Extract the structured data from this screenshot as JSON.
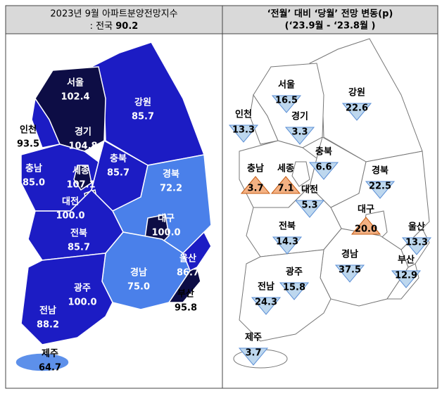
{
  "left_panel": {
    "title": "2023년 9월 아파트분양전망지수",
    "subtitle_prefix": ": 전국",
    "subtitle_value": "90.2"
  },
  "right_panel": {
    "title": "‘전월’ 대비 ‘당월’ 전망 변동(p)",
    "subtitle": "(‘23.9월 - ‘23.8월 )"
  },
  "regions": [
    {
      "name": "서울",
      "index": "102.4",
      "change": "16.5",
      "direction": "down",
      "color": "#0d0d45"
    },
    {
      "name": "강원",
      "index": "85.7",
      "change": "22.6",
      "direction": "down",
      "color": "#1c1cc4"
    },
    {
      "name": "인천",
      "index": "93.5",
      "change": "13.3",
      "direction": "down",
      "color": "#1c1cc4"
    },
    {
      "name": "경기",
      "index": "104.8",
      "change": "3.3",
      "direction": "down",
      "color": "#0d0d45"
    },
    {
      "name": "충북",
      "index": "85.7",
      "change": "6.6",
      "direction": "down",
      "color": "#1c1cc4"
    },
    {
      "name": "충남",
      "index": "85.0",
      "change": "3.7",
      "direction": "up",
      "color": "#1c1cc4"
    },
    {
      "name": "세종",
      "index": "107.1",
      "change": "7.1",
      "direction": "up",
      "color": "#0d0d45"
    },
    {
      "name": "경북",
      "index": "72.2",
      "change": "22.5",
      "direction": "down",
      "color": "#4a80ea"
    },
    {
      "name": "대전",
      "index": "100.0",
      "change": "5.3",
      "direction": "down",
      "color": "#0d0d45"
    },
    {
      "name": "대구",
      "index": "100.0",
      "change": "20.0",
      "direction": "up",
      "color": "#0d0d45"
    },
    {
      "name": "울산",
      "index": "86.7",
      "change": "13.3",
      "direction": "down",
      "color": "#1c1cc4"
    },
    {
      "name": "전북",
      "index": "85.7",
      "change": "14.3",
      "direction": "down",
      "color": "#1c1cc4"
    },
    {
      "name": "경남",
      "index": "75.0",
      "change": "37.5",
      "direction": "down",
      "color": "#4a80ea"
    },
    {
      "name": "부산",
      "index": "95.8",
      "change": "12.9",
      "direction": "down",
      "color": "#0d0d45"
    },
    {
      "name": "광주",
      "index": "100.0",
      "change": "15.8",
      "direction": "down",
      "color": "#0d0d45"
    },
    {
      "name": "전남",
      "index": "88.2",
      "change": "24.3",
      "direction": "down",
      "color": "#1c1cc4"
    },
    {
      "name": "제주",
      "index": "64.7",
      "change": "3.7",
      "direction": "down",
      "color": "#5d90ea"
    }
  ]
}
